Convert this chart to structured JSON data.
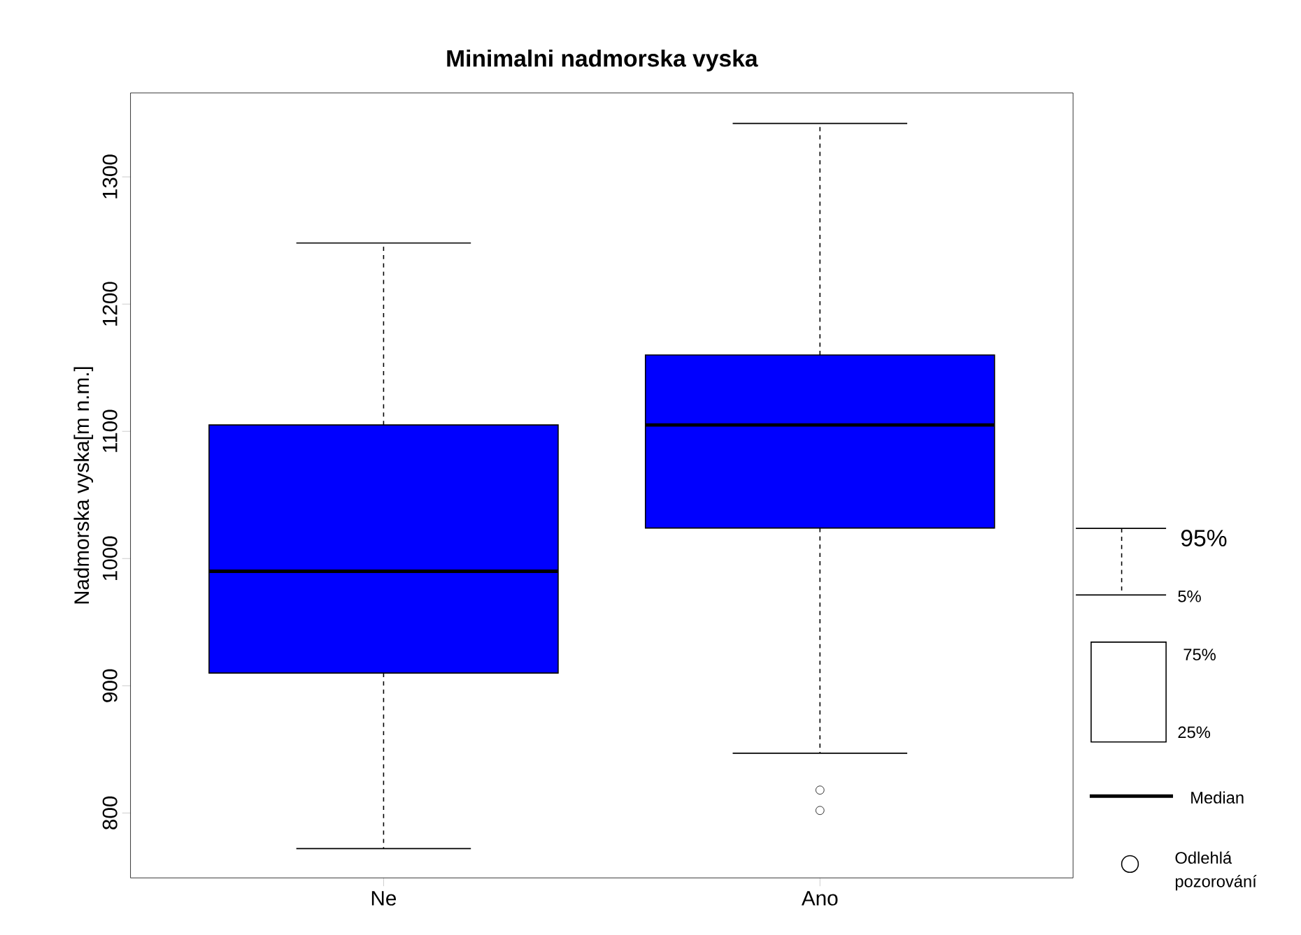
{
  "chart_data": {
    "type": "box",
    "title": "Minimalni nadmorska vyska",
    "ylabel": "Nadmorska vyska[m n.m.]",
    "categories": [
      "Ne",
      "Ano"
    ],
    "color": "#0000ff",
    "boxes": [
      {
        "low": 772,
        "q1": 910,
        "median": 990,
        "q3": 1105,
        "high": 1248
      },
      {
        "low": 847,
        "q1": 1024,
        "median": 1105,
        "q3": 1160,
        "high": 1342,
        "outliers": [
          818,
          802
        ]
      }
    ],
    "ylim": [
      749,
      1366
    ],
    "yticks": [
      800,
      900,
      1000,
      1100,
      1200,
      1300
    ],
    "grid": false,
    "annotations": [
      "95%",
      "5%",
      "75%",
      "25%",
      "Median",
      "Odlehlá pozorování"
    ]
  }
}
